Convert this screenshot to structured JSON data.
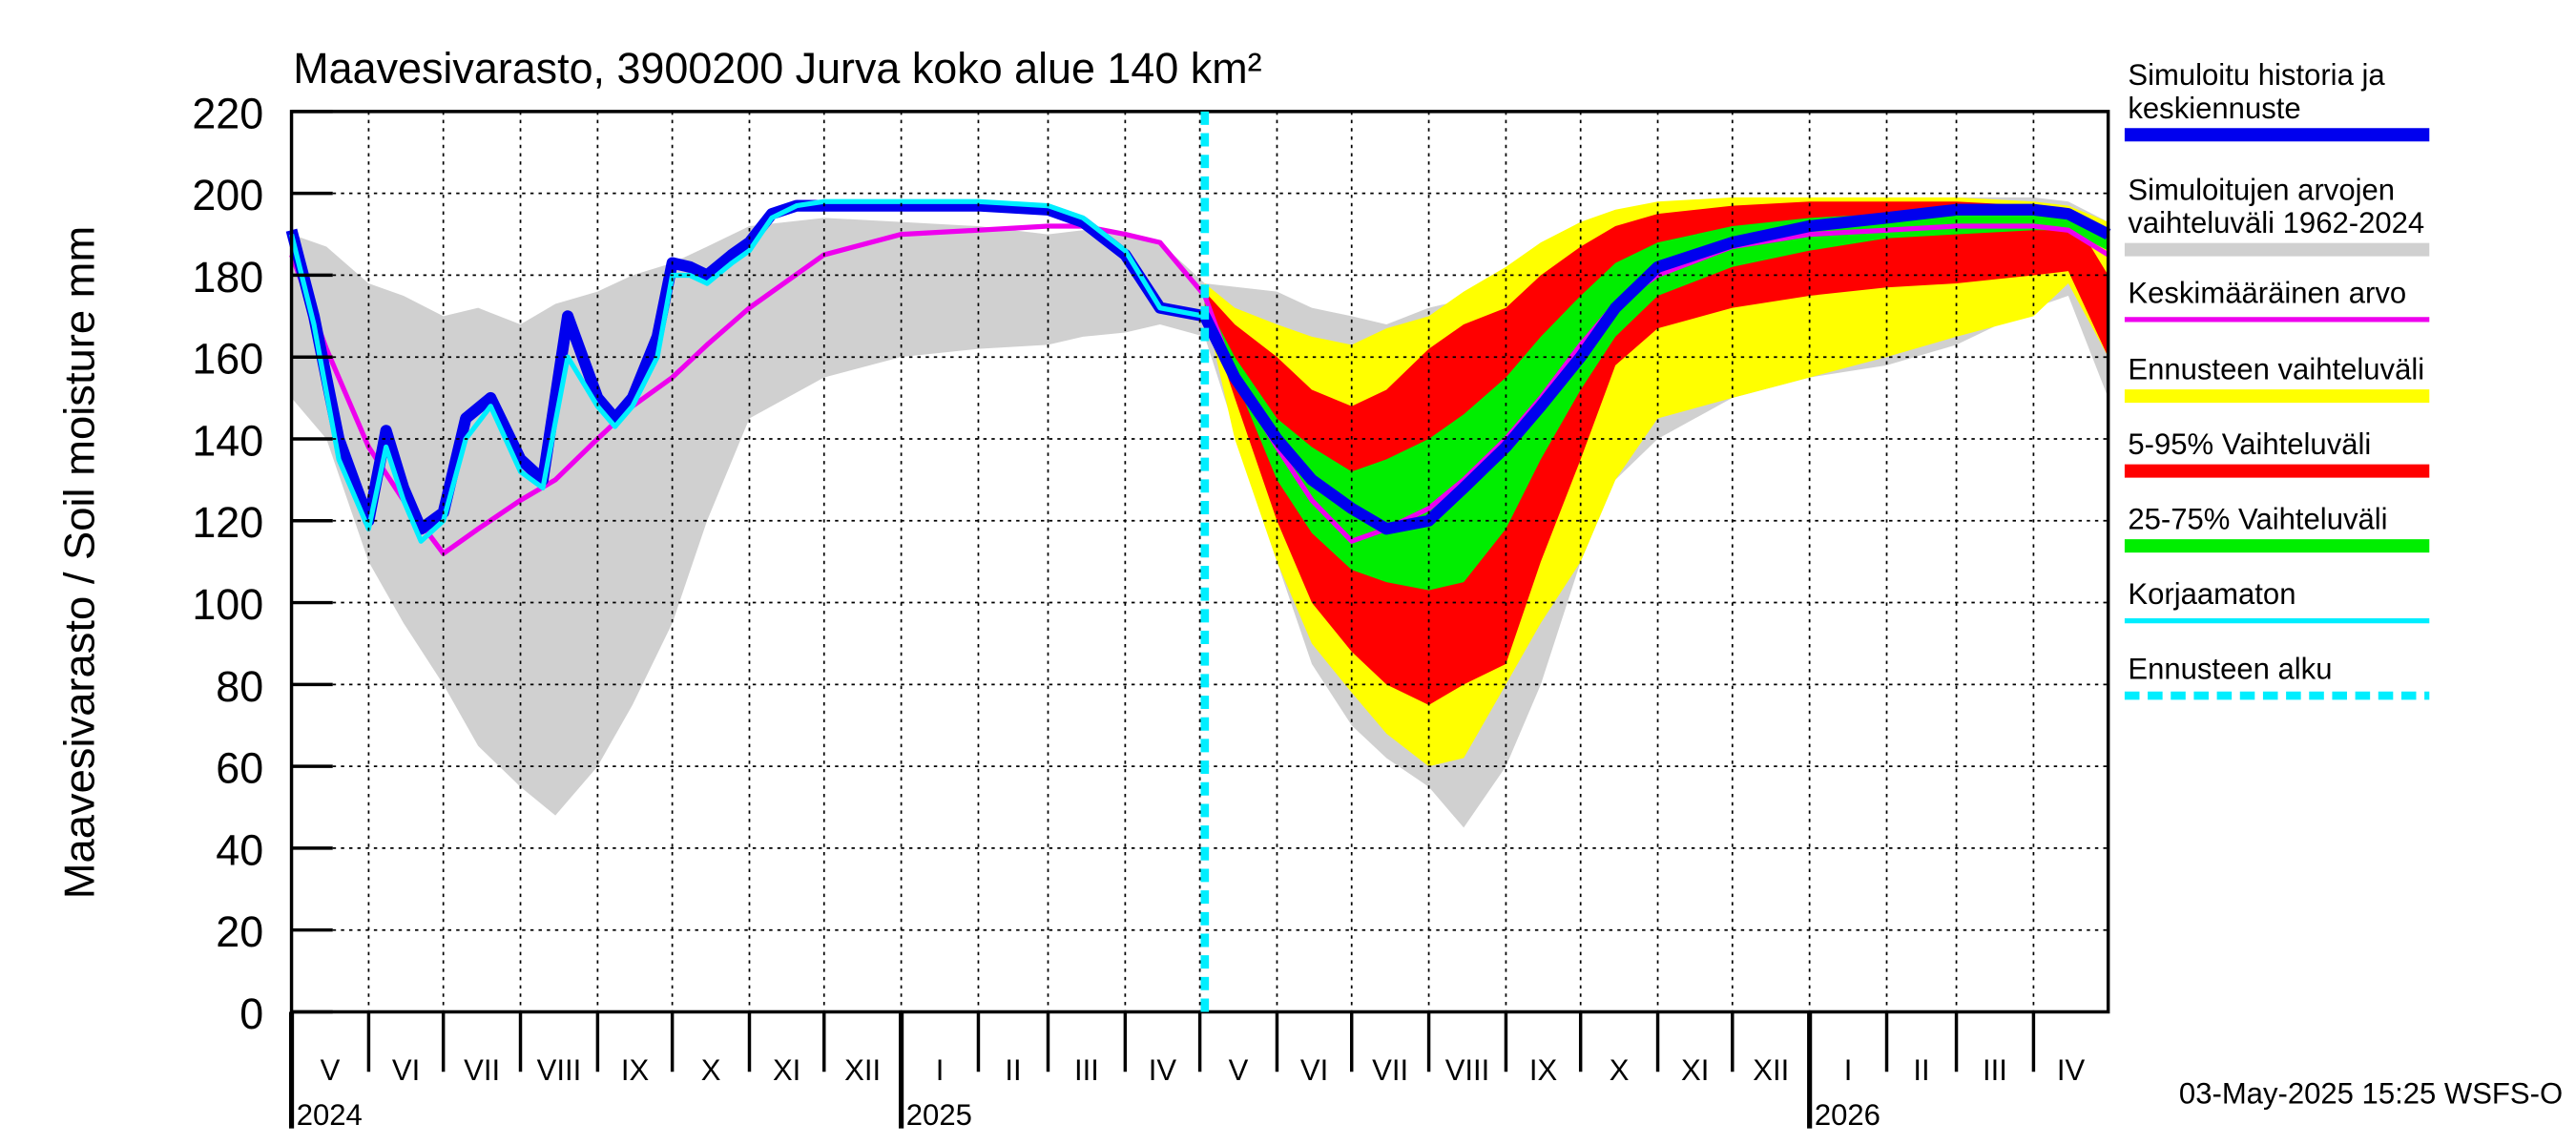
{
  "chart_data": {
    "type": "area",
    "title": "Maavesivarasto, 3900200 Jurva koko alue 140 km²",
    "ylabel": "Maavesivarasto / Soil moisture   mm",
    "ylim": [
      0,
      220
    ],
    "yticks": [
      0,
      20,
      40,
      60,
      80,
      100,
      120,
      140,
      160,
      180,
      200,
      220
    ],
    "grid": true,
    "legend_position": "right",
    "footer": "03-May-2025 15:25 WSFS-O",
    "forecast_start": "2025-05-03",
    "months": [
      {
        "label": "V",
        "start": "2024-05-01"
      },
      {
        "label": "VI",
        "start": "2024-06-01"
      },
      {
        "label": "VII",
        "start": "2024-07-01"
      },
      {
        "label": "VIII",
        "start": "2024-08-01"
      },
      {
        "label": "IX",
        "start": "2024-09-01"
      },
      {
        "label": "X",
        "start": "2024-10-01"
      },
      {
        "label": "XI",
        "start": "2024-11-01"
      },
      {
        "label": "XII",
        "start": "2024-12-01"
      },
      {
        "label": "I",
        "start": "2025-01-01"
      },
      {
        "label": "II",
        "start": "2025-02-01"
      },
      {
        "label": "III",
        "start": "2025-03-01"
      },
      {
        "label": "IV",
        "start": "2025-04-01"
      },
      {
        "label": "V",
        "start": "2025-05-01"
      },
      {
        "label": "VI",
        "start": "2025-06-01"
      },
      {
        "label": "VII",
        "start": "2025-07-01"
      },
      {
        "label": "VIII",
        "start": "2025-08-01"
      },
      {
        "label": "IX",
        "start": "2025-09-01"
      },
      {
        "label": "X",
        "start": "2025-10-01"
      },
      {
        "label": "XI",
        "start": "2025-11-01"
      },
      {
        "label": "XII",
        "start": "2025-12-01"
      },
      {
        "label": "I",
        "start": "2026-01-01"
      },
      {
        "label": "II",
        "start": "2026-02-01"
      },
      {
        "label": "III",
        "start": "2026-03-01"
      },
      {
        "label": "IV",
        "start": "2026-04-01"
      }
    ],
    "years": [
      {
        "label": "2024",
        "date": "2024-05-01"
      },
      {
        "label": "2025",
        "date": "2025-01-01"
      },
      {
        "label": "2026",
        "date": "2026-01-01"
      }
    ],
    "legend": [
      {
        "label": "Simuloitu historia ja keskiennuste",
        "color": "#0000ee",
        "style": "thick"
      },
      {
        "label": "Simuloitujen arvojen vaihteluväli 1962-2024",
        "color": "#d0d0d0",
        "style": "thick"
      },
      {
        "label": "Keskimääräinen arvo",
        "color": "#ee00ee",
        "style": "thin"
      },
      {
        "label": "Ennusteen vaihteluväli",
        "color": "#ffff00",
        "style": "thick"
      },
      {
        "label": "5-95% Vaihteluväli",
        "color": "#ff0000",
        "style": "thick"
      },
      {
        "label": "25-75% Vaihteluväli",
        "color": "#00ee00",
        "style": "thick"
      },
      {
        "label": "Korjaamaton",
        "color": "#00eeff",
        "style": "thin"
      },
      {
        "label": "Ennusteen alku",
        "color": "#00eeff",
        "style": "dashed"
      }
    ],
    "series": [
      {
        "name": "Simuloitujen arvojen vaihteluväli 1962-2024",
        "kind": "band",
        "color": "#d0d0d0",
        "x": [
          "2024-05-01",
          "2024-05-15",
          "2024-06-01",
          "2024-06-15",
          "2024-07-01",
          "2024-07-15",
          "2024-08-01",
          "2024-08-15",
          "2024-09-01",
          "2024-09-15",
          "2024-10-01",
          "2024-10-15",
          "2024-11-01",
          "2024-12-01",
          "2025-01-01",
          "2025-02-01",
          "2025-03-01",
          "2025-03-15",
          "2025-04-01",
          "2025-04-15",
          "2025-05-03"
        ],
        "upper": [
          190,
          187,
          178,
          175,
          170,
          172,
          168,
          173,
          176,
          180,
          183,
          187,
          192,
          194,
          193,
          192,
          190,
          191,
          190,
          188,
          178
        ],
        "lower": [
          150,
          140,
          110,
          95,
          80,
          65,
          55,
          48,
          60,
          75,
          95,
          120,
          145,
          155,
          160,
          162,
          163,
          165,
          166,
          168,
          165
        ]
      },
      {
        "name": "Simuloitujen arvojen vaihteluväli 1962-2024 (ennuste)",
        "kind": "band",
        "color": "#d0d0d0",
        "x": [
          "2025-05-03",
          "2025-06-01",
          "2025-06-15",
          "2025-07-01",
          "2025-07-15",
          "2025-08-01",
          "2025-08-15",
          "2025-09-01",
          "2025-09-15",
          "2025-10-01",
          "2025-10-15",
          "2025-11-01",
          "2025-12-01",
          "2026-01-01",
          "2026-02-01",
          "2026-03-01",
          "2026-04-01",
          "2026-04-15",
          "2026-05-01"
        ],
        "upper": [
          178,
          176,
          172,
          170,
          168,
          172,
          174,
          178,
          182,
          187,
          190,
          193,
          196,
          198,
          198,
          199,
          199,
          198,
          193
        ],
        "lower": [
          165,
          110,
          85,
          70,
          62,
          55,
          45,
          60,
          80,
          110,
          130,
          140,
          150,
          155,
          158,
          163,
          172,
          175,
          150
        ]
      },
      {
        "name": "Ennusteen vaihteluväli",
        "kind": "band",
        "color": "#ffff00",
        "x": [
          "2025-05-03",
          "2025-05-15",
          "2025-06-01",
          "2025-06-15",
          "2025-07-01",
          "2025-07-15",
          "2025-08-01",
          "2025-08-15",
          "2025-09-01",
          "2025-09-15",
          "2025-10-01",
          "2025-10-15",
          "2025-11-01",
          "2025-12-01",
          "2026-01-01",
          "2026-02-01",
          "2026-03-01",
          "2026-04-01",
          "2026-04-15",
          "2026-05-01"
        ],
        "upper": [
          178,
          172,
          168,
          165,
          163,
          167,
          170,
          176,
          182,
          188,
          193,
          196,
          198,
          199,
          199,
          199,
          199,
          198,
          197,
          193
        ],
        "lower": [
          172,
          140,
          110,
          90,
          78,
          68,
          60,
          62,
          80,
          95,
          110,
          130,
          145,
          150,
          155,
          160,
          165,
          170,
          178,
          160
        ]
      },
      {
        "name": "5-95% Vaihteluväli",
        "kind": "band",
        "color": "#ff0000",
        "x": [
          "2025-05-03",
          "2025-05-15",
          "2025-06-01",
          "2025-06-15",
          "2025-07-01",
          "2025-07-15",
          "2025-08-01",
          "2025-08-15",
          "2025-09-01",
          "2025-09-15",
          "2025-10-01",
          "2025-10-15",
          "2025-11-01",
          "2025-12-01",
          "2026-01-01",
          "2026-02-01",
          "2026-03-01",
          "2026-04-01",
          "2026-04-15",
          "2026-05-01"
        ],
        "upper": [
          176,
          168,
          160,
          152,
          148,
          152,
          162,
          168,
          172,
          180,
          187,
          192,
          195,
          197,
          198,
          198,
          198,
          197,
          196,
          180
        ],
        "lower": [
          172,
          150,
          120,
          100,
          88,
          80,
          75,
          80,
          85,
          110,
          135,
          158,
          167,
          172,
          175,
          177,
          178,
          180,
          181,
          160
        ]
      },
      {
        "name": "25-75% Vaihteluväli",
        "kind": "band",
        "color": "#00ee00",
        "x": [
          "2025-05-03",
          "2025-05-15",
          "2025-06-01",
          "2025-06-15",
          "2025-07-01",
          "2025-07-15",
          "2025-08-01",
          "2025-08-15",
          "2025-09-01",
          "2025-09-15",
          "2025-10-01",
          "2025-10-15",
          "2025-11-01",
          "2025-12-01",
          "2026-01-01",
          "2026-02-01",
          "2026-03-01",
          "2026-04-01",
          "2026-04-15",
          "2026-05-01"
        ],
        "upper": [
          174,
          160,
          145,
          138,
          132,
          135,
          140,
          146,
          155,
          165,
          175,
          183,
          188,
          192,
          194,
          195,
          196,
          196,
          195,
          190
        ],
        "lower": [
          172,
          155,
          130,
          117,
          108,
          105,
          103,
          105,
          118,
          135,
          152,
          165,
          175,
          182,
          186,
          189,
          190,
          191,
          191,
          186
        ]
      },
      {
        "name": "Simuloitu historia ja keskiennuste",
        "kind": "line",
        "color": "#0000ee",
        "width": 7,
        "x": [
          "2024-05-01",
          "2024-05-10",
          "2024-05-20",
          "2024-06-01",
          "2024-06-08",
          "2024-06-15",
          "2024-06-22",
          "2024-07-01",
          "2024-07-10",
          "2024-07-20",
          "2024-08-01",
          "2024-08-10",
          "2024-08-20",
          "2024-09-01",
          "2024-09-08",
          "2024-09-15",
          "2024-09-25",
          "2024-10-01",
          "2024-10-08",
          "2024-10-15",
          "2024-10-25",
          "2024-11-01",
          "2024-11-10",
          "2024-11-20",
          "2024-12-01",
          "2025-01-01",
          "2025-02-01",
          "2025-03-01",
          "2025-03-15",
          "2025-04-01",
          "2025-04-15",
          "2025-05-03",
          "2025-05-15",
          "2025-06-01",
          "2025-06-15",
          "2025-07-01",
          "2025-07-15",
          "2025-08-01",
          "2025-08-15",
          "2025-09-01",
          "2025-09-15",
          "2025-10-01",
          "2025-10-15",
          "2025-11-01",
          "2025-12-01",
          "2026-01-01",
          "2026-02-01",
          "2026-03-01",
          "2026-04-01",
          "2026-04-15",
          "2026-05-01"
        ],
        "y": [
          191,
          170,
          140,
          120,
          142,
          128,
          118,
          122,
          145,
          150,
          135,
          130,
          170,
          150,
          145,
          150,
          165,
          183,
          182,
          180,
          185,
          188,
          195,
          197,
          197,
          197,
          197,
          196,
          193,
          185,
          172,
          170,
          155,
          140,
          130,
          123,
          118,
          120,
          128,
          138,
          148,
          160,
          172,
          182,
          188,
          192,
          194,
          196,
          196,
          195,
          190
        ]
      },
      {
        "name": "Keskimääräinen arvo",
        "kind": "line",
        "color": "#ee00ee",
        "width": 3,
        "x": [
          "2024-05-01",
          "2024-05-15",
          "2024-06-01",
          "2024-06-15",
          "2024-07-01",
          "2024-07-15",
          "2024-08-01",
          "2024-08-15",
          "2024-09-01",
          "2024-09-15",
          "2024-10-01",
          "2024-10-15",
          "2024-11-01",
          "2024-12-01",
          "2025-01-01",
          "2025-02-01",
          "2025-03-01",
          "2025-03-15",
          "2025-04-01",
          "2025-04-15",
          "2025-05-03",
          "2025-05-15",
          "2025-06-01",
          "2025-06-15",
          "2025-07-01",
          "2025-07-15",
          "2025-08-01",
          "2025-08-15",
          "2025-09-01",
          "2025-09-15",
          "2025-10-01",
          "2025-10-15",
          "2025-11-01",
          "2025-12-01",
          "2026-01-01",
          "2026-02-01",
          "2026-03-01",
          "2026-04-01",
          "2026-04-15",
          "2026-05-01"
        ],
        "y": [
          185,
          162,
          138,
          125,
          112,
          118,
          125,
          130,
          140,
          148,
          155,
          163,
          172,
          185,
          190,
          191,
          192,
          192,
          190,
          188,
          175,
          155,
          138,
          125,
          115,
          118,
          123,
          130,
          140,
          150,
          163,
          173,
          180,
          187,
          190,
          191,
          192,
          192,
          191,
          185
        ]
      },
      {
        "name": "Korjaamaton",
        "kind": "line",
        "color": "#00eeff",
        "width": 3,
        "x": [
          "2024-05-01",
          "2024-05-10",
          "2024-05-20",
          "2024-06-01",
          "2024-06-08",
          "2024-06-15",
          "2024-06-22",
          "2024-07-01",
          "2024-07-10",
          "2024-07-20",
          "2024-08-01",
          "2024-08-10",
          "2024-08-20",
          "2024-09-01",
          "2024-09-08",
          "2024-09-15",
          "2024-09-25",
          "2024-10-01",
          "2024-10-08",
          "2024-10-15",
          "2024-10-25",
          "2024-11-01",
          "2024-11-10",
          "2024-11-20",
          "2024-12-01",
          "2025-01-01",
          "2025-02-01",
          "2025-03-01",
          "2025-03-15",
          "2025-04-01",
          "2025-04-15",
          "2025-05-03"
        ],
        "y": [
          190,
          168,
          135,
          118,
          138,
          125,
          115,
          120,
          140,
          148,
          132,
          128,
          160,
          148,
          143,
          148,
          160,
          180,
          180,
          178,
          183,
          186,
          194,
          197,
          198,
          198,
          198,
          197,
          194,
          186,
          172,
          170
        ]
      }
    ]
  }
}
